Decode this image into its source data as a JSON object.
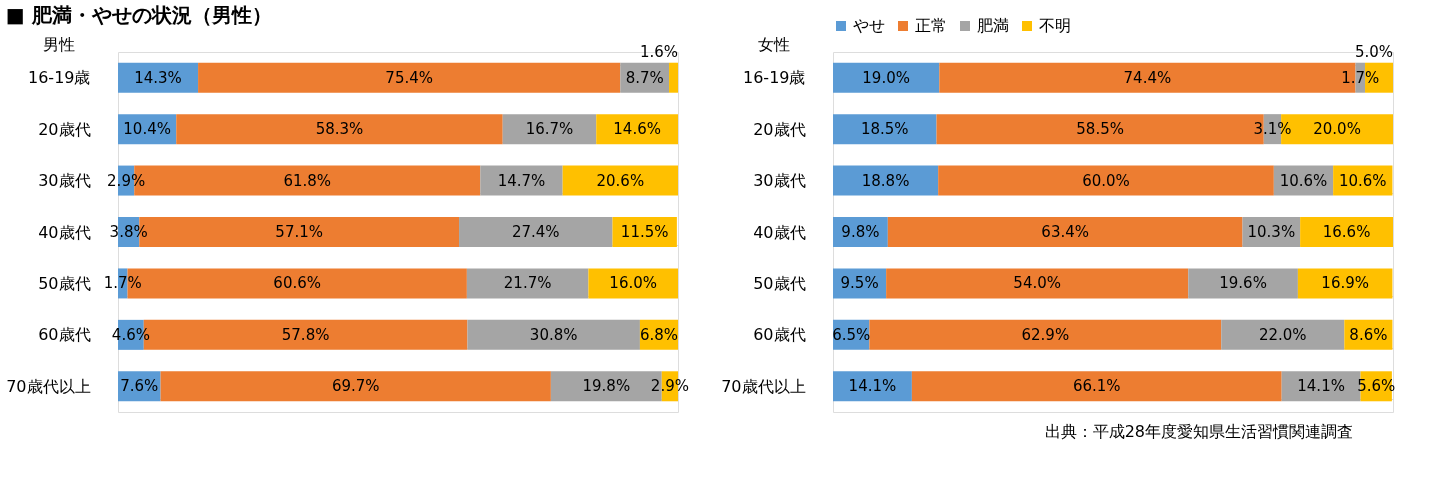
{
  "chart_data": [
    {
      "type": "bar",
      "orientation": "horizontal",
      "stacked": true,
      "title": "■ 肥満・やせの状況（男性）",
      "ylabel": "男性",
      "grid": "y",
      "tick_labels": "y",
      "categories": [
        "16-19歳",
        "20歳代",
        "30歳代",
        "40歳代",
        "50歳代",
        "60歳代",
        "70歳代以上"
      ],
      "series": [
        {
          "color": "#5b9bd5",
          "values": [
            14.3,
            10.4,
            2.9,
            3.8,
            1.7,
            4.6,
            7.6
          ],
          "value_labels": [
            "14.3%",
            "10.4%",
            "2.9%",
            "3.8%",
            "1.7%",
            "4.6%",
            "7.6%"
          ]
        },
        {
          "color": "#ed7d31",
          "values": [
            75.4,
            58.3,
            61.8,
            57.1,
            60.6,
            57.8,
            69.7
          ],
          "value_labels": [
            "75.4%",
            "58.3%",
            "61.8%",
            "57.1%",
            "60.6%",
            "57.8%",
            "69.7%"
          ]
        },
        {
          "color": "#a5a5a5",
          "values": [
            8.7,
            16.7,
            14.7,
            27.4,
            21.7,
            30.8,
            19.8
          ],
          "value_labels": [
            "8.7%",
            "16.7%",
            "14.7%",
            "27.4%",
            "21.7%",
            "30.8%",
            "19.8%"
          ]
        },
        {
          "color": "#ffc000",
          "values": [
            1.6,
            14.6,
            20.6,
            11.5,
            16.0,
            6.8,
            2.9
          ],
          "value_labels": [
            "1.6%",
            "14.6%",
            "20.6%",
            "11.5%",
            "16.0%",
            "6.8%",
            "2.9%"
          ]
        }
      ]
    },
    {
      "type": "bar",
      "orientation": "horizontal",
      "stacked": true,
      "ylabel": "女性",
      "legend": "top",
      "grid": "y",
      "tick_labels": "y",
      "annotations": [
        "出典：平成28年度愛知県生活習慣関連調査"
      ],
      "categories": [
        "16-19歳",
        "20歳代",
        "30歳代",
        "40歳代",
        "50歳代",
        "60歳代",
        "70歳代以上"
      ],
      "series": [
        {
          "name": "やせ",
          "color": "#5b9bd5",
          "values": [
            19.0,
            18.5,
            18.8,
            9.8,
            9.5,
            6.5,
            14.1
          ],
          "value_labels": [
            "19.0%",
            "18.5%",
            "18.8%",
            "9.8%",
            "9.5%",
            "6.5%",
            "14.1%"
          ]
        },
        {
          "name": "正常",
          "color": "#ed7d31",
          "values": [
            74.4,
            58.5,
            60.0,
            63.4,
            54.0,
            62.9,
            66.1
          ],
          "value_labels": [
            "74.4%",
            "58.5%",
            "60.0%",
            "63.4%",
            "54.0%",
            "62.9%",
            "66.1%"
          ]
        },
        {
          "name": "肥満",
          "color": "#a5a5a5",
          "values": [
            1.7,
            3.1,
            10.6,
            10.3,
            19.6,
            22.0,
            14.1
          ],
          "value_labels": [
            "1.7%",
            "3.1%",
            "10.6%",
            "10.3%",
            "19.6%",
            "22.0%",
            "14.1%"
          ]
        },
        {
          "name": "不明",
          "color": "#ffc000",
          "values": [
            5.0,
            20.0,
            10.6,
            16.6,
            16.9,
            8.6,
            5.6
          ],
          "value_labels": [
            "5.0%",
            "20.0%",
            "10.6%",
            "16.6%",
            "16.9%",
            "8.6%",
            "5.6%"
          ]
        }
      ]
    }
  ]
}
